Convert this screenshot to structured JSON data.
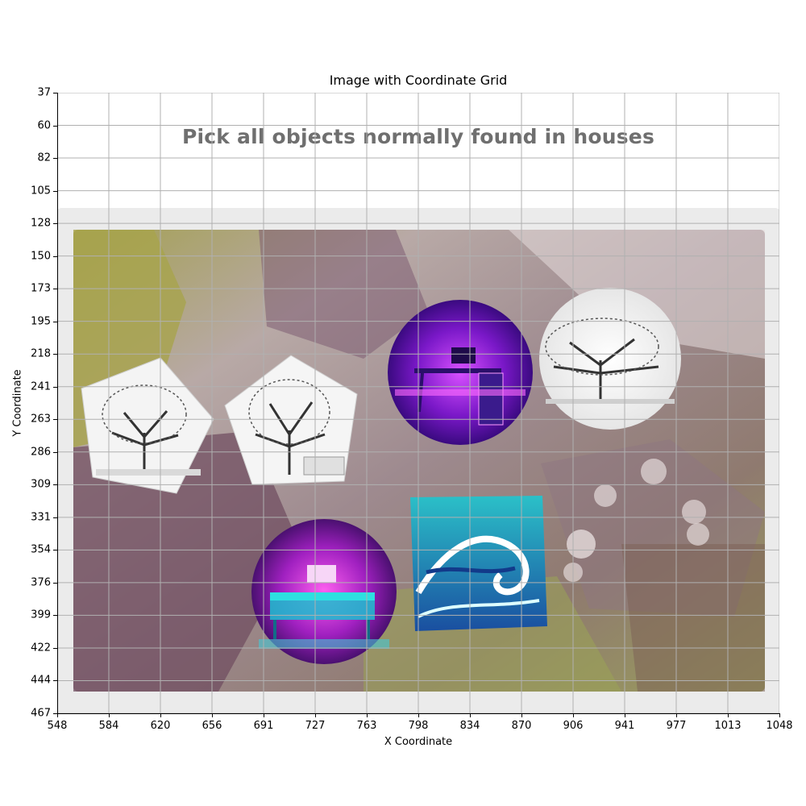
{
  "figure": {
    "title": "Image with Coordinate Grid",
    "xlabel": "X Coordinate",
    "ylabel": "Y Coordinate",
    "x_ticks": [
      "548",
      "584",
      "620",
      "656",
      "691",
      "727",
      "763",
      "798",
      "834",
      "870",
      "906",
      "941",
      "977",
      "1013",
      "1048"
    ],
    "y_ticks": [
      "37",
      "60",
      "82",
      "105",
      "128",
      "150",
      "173",
      "195",
      "218",
      "241",
      "263",
      "286",
      "309",
      "331",
      "354",
      "376",
      "399",
      "422",
      "444",
      "467"
    ]
  },
  "captcha": {
    "prompt": "Pick all objects normally found in houses",
    "tiles": [
      {
        "id": "tile-1",
        "subject": "tree",
        "shape": "pentagon"
      },
      {
        "id": "tile-2",
        "subject": "tree",
        "shape": "pentagon"
      },
      {
        "id": "tile-3",
        "subject": "desk",
        "shape": "circle"
      },
      {
        "id": "tile-4",
        "subject": "tree",
        "shape": "circle"
      },
      {
        "id": "tile-5",
        "subject": "desk",
        "shape": "circle"
      },
      {
        "id": "tile-6",
        "subject": "wave",
        "shape": "square"
      }
    ]
  },
  "colors": {
    "panel": "#ebebeb",
    "prompt_text": "#6f6f6f",
    "grid": "#b0b0b0"
  }
}
